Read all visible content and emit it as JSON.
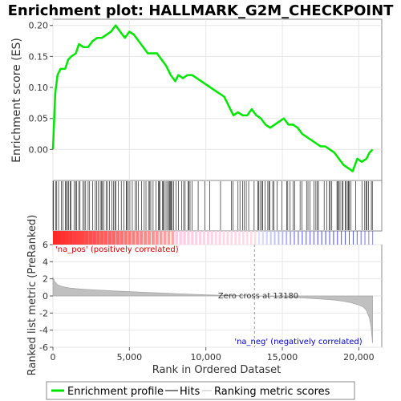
{
  "chart_data": {
    "type": "line",
    "title": "Enrichment plot: HALLMARK_G2M_CHECKPOINT",
    "xlabel": "Rank in Ordered Dataset",
    "top_ylabel": "Enrichment score (ES)",
    "bottom_ylabel": "Ranked list metric (PreRanked)",
    "xlim": [
      0,
      21500
    ],
    "es_ylim": [
      -0.05,
      0.21
    ],
    "metric_ylim": [
      -6,
      6
    ],
    "x_ticks": [
      0,
      5000,
      10000,
      15000,
      20000
    ],
    "x_tick_labels": [
      "0",
      "5,000",
      "10,000",
      "15,000",
      "20,000"
    ],
    "es_ticks": [
      0.0,
      0.05,
      0.1,
      0.15,
      0.2
    ],
    "es_tick_labels": [
      "0.00",
      "0.05",
      "0.10",
      "0.15",
      "0.20"
    ],
    "metric_ticks": [
      -6,
      -4,
      -2,
      0,
      2,
      4,
      6
    ],
    "metric_tick_labels": [
      "-6",
      "-4",
      "-2",
      "0",
      "2",
      "4",
      "6"
    ],
    "grid": true,
    "enrichment_profile": {
      "name": "Enrichment profile",
      "color": "#00e600",
      "x": [
        0,
        150,
        300,
        500,
        800,
        1000,
        1200,
        1500,
        1700,
        2000,
        2300,
        2600,
        2900,
        3200,
        3500,
        3800,
        4100,
        4400,
        4700,
        5000,
        5300,
        5600,
        5900,
        6200,
        6500,
        6800,
        7100,
        7400,
        7700,
        8000,
        8200,
        8500,
        8800,
        9100,
        9400,
        9700,
        10000,
        10300,
        10600,
        10900,
        11200,
        11500,
        11800,
        12100,
        12400,
        12700,
        13000,
        13300,
        13600,
        13900,
        14200,
        14500,
        14800,
        15100,
        15400,
        15700,
        16000,
        16300,
        16600,
        16900,
        17200,
        17500,
        17800,
        18100,
        18400,
        18700,
        19000,
        19300,
        19600,
        19900,
        20200,
        20500,
        20700,
        20900
      ],
      "y": [
        0.0,
        0.09,
        0.12,
        0.13,
        0.13,
        0.145,
        0.15,
        0.155,
        0.17,
        0.165,
        0.165,
        0.175,
        0.18,
        0.18,
        0.185,
        0.19,
        0.2,
        0.19,
        0.18,
        0.19,
        0.185,
        0.175,
        0.165,
        0.155,
        0.155,
        0.155,
        0.145,
        0.135,
        0.12,
        0.11,
        0.12,
        0.115,
        0.12,
        0.12,
        0.115,
        0.11,
        0.105,
        0.1,
        0.095,
        0.09,
        0.085,
        0.07,
        0.055,
        0.06,
        0.055,
        0.055,
        0.065,
        0.055,
        0.05,
        0.04,
        0.035,
        0.04,
        0.045,
        0.05,
        0.04,
        0.04,
        0.035,
        0.025,
        0.02,
        0.015,
        0.01,
        0.005,
        0.005,
        0.0,
        -0.005,
        -0.015,
        -0.025,
        -0.03,
        -0.035,
        -0.015,
        -0.02,
        -0.015,
        -0.005,
        0.0
      ]
    },
    "ranked_metric": {
      "name": "Ranking metric scores",
      "color": "#c0c0c0",
      "x": [
        0,
        100,
        300,
        600,
        1000,
        1500,
        2000,
        3000,
        4000,
        5000,
        6000,
        7000,
        8000,
        9000,
        10000,
        11000,
        12000,
        13180,
        14000,
        15000,
        16000,
        17000,
        18000,
        18500,
        19000,
        19500,
        20000,
        20300,
        20500,
        20700,
        20800,
        20900
      ],
      "y": [
        2.2,
        1.7,
        1.3,
        1.1,
        0.95,
        0.85,
        0.78,
        0.68,
        0.58,
        0.5,
        0.42,
        0.35,
        0.27,
        0.2,
        0.13,
        0.08,
        0.04,
        0.0,
        -0.05,
        -0.12,
        -0.2,
        -0.3,
        -0.42,
        -0.5,
        -0.62,
        -0.8,
        -1.05,
        -1.3,
        -1.7,
        -2.6,
        -3.6,
        -5.5
      ]
    },
    "zero_cross": 13180,
    "annotations": {
      "zero_cross": "Zero cross at 13180",
      "na_pos": "'na_pos' (positively correlated)",
      "na_neg": "'na_neg' (negatively correlated)"
    },
    "legend": {
      "placement": "bottom",
      "items": [
        "Enrichment profile",
        "Hits",
        "Ranking metric scores"
      ]
    }
  }
}
